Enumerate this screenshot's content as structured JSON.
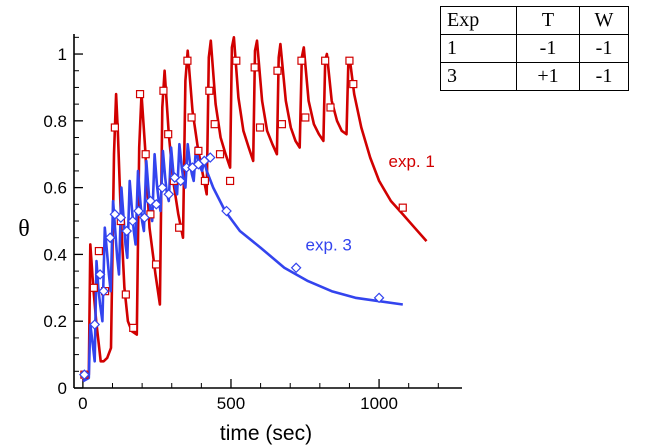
{
  "chart_data": {
    "type": "line",
    "xlabel": "time (sec)",
    "ylabel": "θ",
    "xlim": [
      -30,
      1280
    ],
    "ylim": [
      0,
      1.06
    ],
    "xticks": [
      0,
      500,
      1000
    ],
    "yticks": [
      0,
      0.2,
      0.4,
      0.6,
      0.8,
      1
    ],
    "ytick_labels": [
      "0",
      "0.2",
      "0.4",
      "0.6",
      "0.8",
      "1"
    ],
    "colors": {
      "exp1": "#d10000",
      "exp3": "#3344ee"
    },
    "series": [
      {
        "name": "exp. 1",
        "color": "#d10000",
        "marker": "square",
        "x": [
          0,
          20,
          25,
          35,
          45,
          55,
          60,
          70,
          82,
          95,
          105,
          112,
          118,
          128,
          140,
          152,
          165,
          182,
          190,
          198,
          210,
          225,
          245,
          260,
          268,
          276,
          290,
          305,
          322,
          338,
          346,
          354,
          370,
          388,
          405,
          418,
          425,
          432,
          448,
          465,
          482,
          497,
          503,
          510,
          525,
          542,
          560,
          575,
          581,
          588,
          605,
          622,
          640,
          655,
          661,
          667,
          685,
          702,
          718,
          732,
          739,
          746,
          762,
          780,
          797,
          812,
          818,
          824,
          840,
          858,
          874,
          890,
          896,
          902,
          916,
          940,
          970,
          1000,
          1040,
          1080,
          1120,
          1160
        ],
        "y": [
          0.02,
          0.04,
          0.43,
          0.3,
          0.2,
          0.12,
          0.08,
          0.08,
          0.09,
          0.12,
          0.7,
          0.88,
          0.77,
          0.52,
          0.3,
          0.2,
          0.17,
          0.16,
          0.72,
          0.88,
          0.72,
          0.48,
          0.34,
          0.25,
          0.84,
          0.95,
          0.76,
          0.62,
          0.52,
          0.45,
          0.92,
          1.01,
          0.83,
          0.72,
          0.64,
          0.58,
          0.99,
          1.04,
          0.85,
          0.75,
          0.7,
          0.66,
          1.02,
          1.05,
          0.87,
          0.77,
          0.72,
          0.68,
          1.01,
          1.04,
          0.86,
          0.77,
          0.73,
          0.7,
          0.99,
          1.03,
          0.86,
          0.78,
          0.74,
          0.72,
          0.99,
          1.02,
          0.86,
          0.79,
          0.76,
          0.74,
          0.98,
          1.0,
          0.86,
          0.8,
          0.77,
          0.76,
          0.97,
          0.98,
          0.88,
          0.78,
          0.69,
          0.62,
          0.56,
          0.52,
          0.48,
          0.44
        ],
        "markers_x": [
          5,
          37,
          54,
          75,
          108,
          128,
          145,
          170,
          193,
          212,
          228,
          247,
          272,
          288,
          307,
          325,
          353,
          367,
          390,
          412,
          427,
          445,
          463,
          497,
          518,
          580,
          598,
          657,
          672,
          738,
          751,
          818,
          836,
          900,
          913,
          1080
        ],
        "markers_y": [
          0.04,
          0.3,
          0.41,
          0.29,
          0.78,
          0.5,
          0.28,
          0.18,
          0.88,
          0.7,
          0.52,
          0.37,
          0.89,
          0.76,
          0.62,
          0.48,
          0.98,
          0.81,
          0.71,
          0.62,
          0.89,
          0.79,
          0.7,
          0.62,
          0.98,
          0.96,
          0.78,
          0.95,
          0.79,
          0.98,
          0.81,
          0.98,
          0.84,
          0.98,
          0.91,
          0.54
        ]
      },
      {
        "name": "exp. 3",
        "color": "#3344ee",
        "marker": "diamond",
        "x": [
          0,
          20,
          25,
          32,
          40,
          46,
          52,
          58,
          66,
          74,
          82,
          88,
          94,
          102,
          110,
          116,
          122,
          130,
          138,
          144,
          150,
          158,
          166,
          172,
          178,
          186,
          194,
          200,
          206,
          214,
          222,
          228,
          234,
          242,
          250,
          256,
          262,
          270,
          278,
          284,
          290,
          298,
          306,
          312,
          318,
          326,
          334,
          340,
          346,
          354,
          362,
          368,
          374,
          382,
          390,
          396,
          402,
          410,
          418,
          440,
          480,
          530,
          600,
          680,
          760,
          840,
          920,
          1000,
          1080
        ],
        "y": [
          0.02,
          0.03,
          0.19,
          0.14,
          0.08,
          0.38,
          0.3,
          0.25,
          0.2,
          0.48,
          0.4,
          0.34,
          0.29,
          0.56,
          0.46,
          0.39,
          0.34,
          0.6,
          0.5,
          0.43,
          0.39,
          0.62,
          0.53,
          0.47,
          0.43,
          0.65,
          0.56,
          0.5,
          0.47,
          0.68,
          0.59,
          0.53,
          0.5,
          0.7,
          0.61,
          0.56,
          0.53,
          0.71,
          0.63,
          0.58,
          0.56,
          0.72,
          0.64,
          0.6,
          0.58,
          0.73,
          0.66,
          0.62,
          0.6,
          0.73,
          0.67,
          0.64,
          0.62,
          0.72,
          0.68,
          0.66,
          0.65,
          0.68,
          0.65,
          0.6,
          0.53,
          0.47,
          0.42,
          0.36,
          0.32,
          0.29,
          0.27,
          0.26,
          0.25
        ],
        "markers_x": [
          5,
          40,
          58,
          70,
          92,
          108,
          128,
          148,
          168,
          188,
          208,
          228,
          248,
          268,
          290,
          310,
          330,
          350,
          370,
          390,
          410,
          430,
          485,
          720,
          1000
        ],
        "markers_y": [
          0.04,
          0.19,
          0.34,
          0.29,
          0.45,
          0.52,
          0.51,
          0.47,
          0.5,
          0.53,
          0.51,
          0.56,
          0.55,
          0.6,
          0.58,
          0.63,
          0.62,
          0.66,
          0.66,
          0.67,
          0.68,
          0.69,
          0.53,
          0.36,
          0.27
        ]
      }
    ],
    "annotations": [
      {
        "text": "exp. 1",
        "x": 1110,
        "y": 0.68,
        "color": "#d10000"
      },
      {
        "text": "exp. 3",
        "x": 830,
        "y": 0.43,
        "color": "#3344ee"
      }
    ],
    "table": {
      "headers": [
        "Exp",
        "T",
        "W"
      ],
      "rows": [
        [
          "1",
          "-1",
          "-1"
        ],
        [
          "3",
          "+1",
          "-1"
        ]
      ]
    }
  }
}
